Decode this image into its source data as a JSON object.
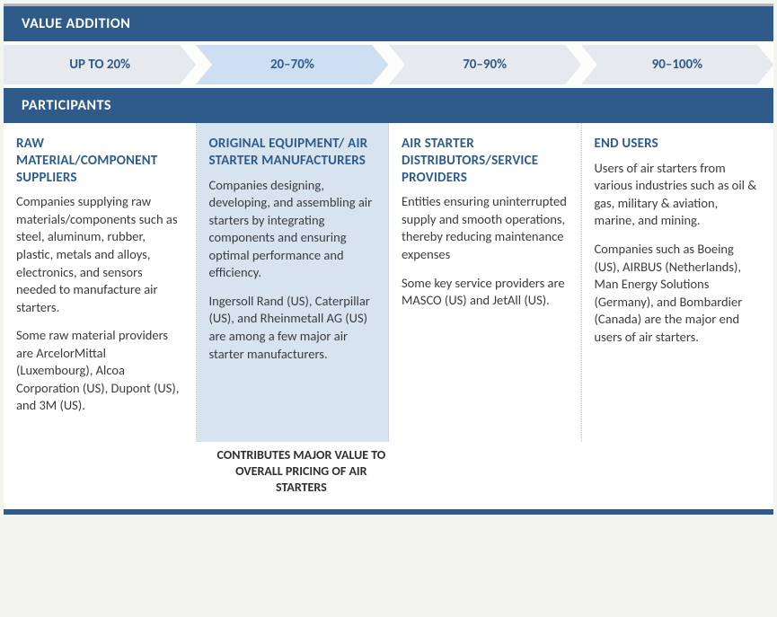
{
  "colors": {
    "header_bg": "#2f5b8a",
    "header_text": "#ffffff",
    "arrow_light": "#e6e9ee",
    "arrow_highlight": "#cddff0",
    "arrow_text": "#2f5b8a",
    "col_highlight_bg": "#d7e4f0",
    "body_text": "#3b3b3b",
    "title_text": "#2f5b8a",
    "divider": "#c8c8c8",
    "top_border": "#b0b4bd"
  },
  "headers": {
    "value_addition": "VALUE ADDITION",
    "participants": "PARTICIPANTS"
  },
  "arrows": [
    {
      "label": "UP TO 20%",
      "fill": "#e6e9ee",
      "highlighted": false
    },
    {
      "label": "20–70%",
      "fill": "#cddff0",
      "highlighted": true
    },
    {
      "label": "70–90%",
      "fill": "#e6e9ee",
      "highlighted": false
    },
    {
      "label": "90–100%",
      "fill": "#e6e9ee",
      "highlighted": false
    }
  ],
  "columns": [
    {
      "title": "RAW MATERIAL/COMPONENT SUPPLIERS",
      "highlighted": false,
      "paragraphs": [
        "Companies supplying raw materials/components such as steel, aluminum, rubber, plastic, metals and alloys, electronics, and sensors needed to manufacture air starters.",
        "Some raw material providers are ArcelorMittal (Luxembourg), Alcoa Corporation (US), Dupont (US), and 3M (US)."
      ]
    },
    {
      "title": "ORIGINAL EQUIPMENT/ AIR STARTER MANUFACTURERS",
      "highlighted": true,
      "paragraphs": [
        "Companies designing, developing, and assembling air starters by integrating components and ensuring optimal performance and efficiency.",
        "Ingersoll Rand (US), Caterpillar (US), and Rheinmetall AG (US) are among a few major air starter manufacturers."
      ]
    },
    {
      "title": "AIR STARTER DISTRIBUTORS/SERVICE PROVIDERS",
      "highlighted": false,
      "paragraphs": [
        "Entities ensuring uninterrupted supply and smooth operations, thereby reducing maintenance expenses",
        "Some key service providers are MASCO (US) and JetAll (US)."
      ]
    },
    {
      "title": "END USERS",
      "highlighted": false,
      "paragraphs": [
        "Users of air starters from various industries such as oil & gas, military & aviation, marine, and mining.",
        "Companies such as Boeing (US), AIRBUS (Netherlands), Man Energy Solutions (Germany),  and Bombardier (Canada) are the major end users of air starters."
      ]
    }
  ],
  "footnote": "CONTRIBUTES MAJOR VALUE TO OVERALL PRICING OF AIR STARTERS"
}
